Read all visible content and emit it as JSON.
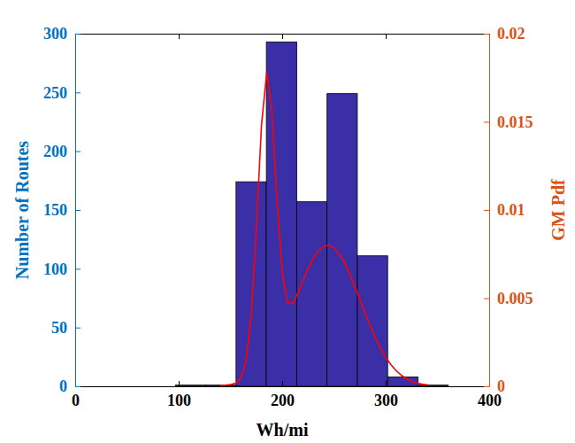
{
  "chart_data": {
    "type": "histogram",
    "xlabel": "Wh/mi",
    "ylabel": "Number of Routes",
    "y2label": "GM Pdf",
    "bins": [
      96.8,
      126.1,
      155.4,
      184.7,
      214.0,
      243.3,
      272.6,
      301.9,
      331.2,
      360.5
    ],
    "xlim": [
      0,
      400
    ],
    "xticks": [
      0,
      100,
      200,
      300,
      400
    ],
    "ylim": [
      0,
      300
    ],
    "yticks": [
      0,
      50,
      100,
      150,
      200,
      250,
      300
    ],
    "y2lim": [
      0,
      0.02
    ],
    "y2ticks": [
      0,
      0.005,
      0.01,
      0.015,
      0.02
    ],
    "series": [
      {
        "type": "bar",
        "color": "#3a2fa6",
        "values": [
          1,
          1,
          174,
          293,
          157,
          249,
          111,
          8,
          1
        ]
      },
      {
        "type": "line",
        "axis": "y2",
        "color": "#ff0000",
        "x": [
          140,
          145,
          150,
          155,
          160,
          165,
          170,
          175,
          180,
          185,
          190,
          195,
          200,
          205,
          210,
          215,
          220,
          225,
          230,
          235,
          240,
          245,
          250,
          255,
          260,
          265,
          270,
          275,
          280,
          285,
          290,
          295,
          300,
          305,
          310,
          315,
          320,
          325,
          330,
          335,
          340
        ],
        "values": [
          3e-05,
          6e-05,
          0.0001,
          0.00018,
          0.00045,
          0.00137,
          0.00396,
          0.00894,
          0.01481,
          0.01778,
          0.01563,
          0.01059,
          0.00647,
          0.00475,
          0.00468,
          0.00527,
          0.00598,
          0.00667,
          0.00725,
          0.00768,
          0.00794,
          0.008,
          0.00786,
          0.00753,
          0.00703,
          0.00641,
          0.00569,
          0.00493,
          0.00416,
          0.00343,
          0.00275,
          0.00216,
          0.00165,
          0.00123,
          0.00089,
          0.00063,
          0.00044,
          0.00029,
          0.00019,
          0.00012,
          8e-05
        ]
      }
    ]
  }
}
